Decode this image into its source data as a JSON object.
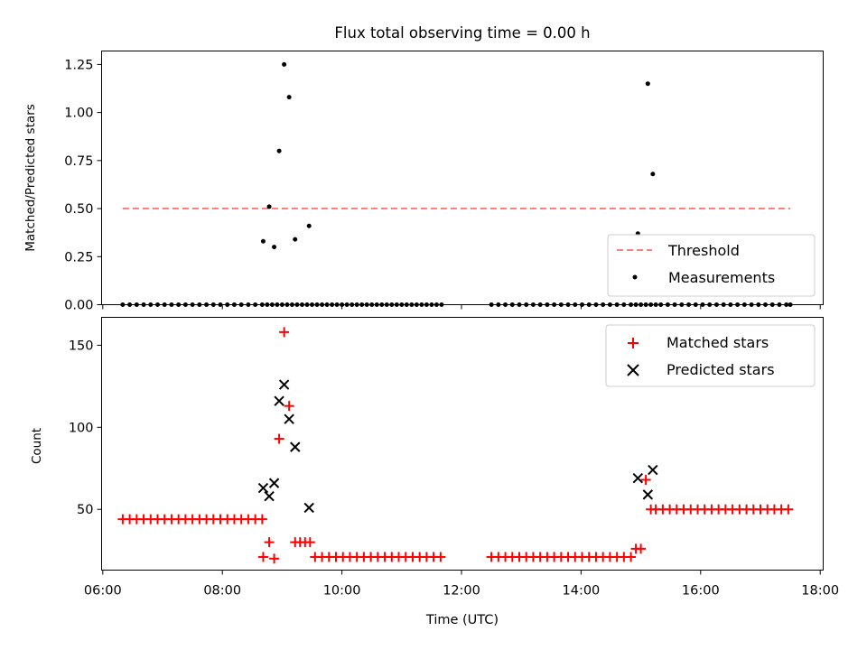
{
  "chart_data": [
    {
      "type": "scatter",
      "title": "Flux total observing time = 0.00 h",
      "xlabel": "",
      "ylabel": "Matched/Predicted stars",
      "xlim": [
        "06:00",
        "18:00"
      ],
      "ylim": [
        0.0,
        1.32
      ],
      "yticks": [
        "0.00",
        "0.25",
        "0.50",
        "0.75",
        "1.00",
        "1.25"
      ],
      "yticks_values": [
        0.0,
        0.25,
        0.5,
        0.75,
        1.0,
        1.25
      ],
      "legend_position": "lower-right",
      "colors": {
        "threshold": "#ff7f7f",
        "measurements": "#000000"
      },
      "series": [
        {
          "name": "Threshold",
          "style": "dashed-line",
          "x": [
            "06:20",
            "17:30"
          ],
          "y": [
            0.5,
            0.5
          ]
        },
        {
          "name": "Measurements",
          "style": "dot",
          "x": [
            "06:20",
            "06:27",
            "06:34",
            "06:41",
            "06:48",
            "06:55",
            "07:02",
            "07:09",
            "07:16",
            "07:23",
            "07:30",
            "07:37",
            "07:44",
            "07:51",
            "07:58",
            "08:05",
            "08:12",
            "08:19",
            "08:26",
            "08:33",
            "08:40",
            "08:45",
            "08:50",
            "08:55",
            "09:00",
            "09:05",
            "09:10",
            "09:15",
            "09:20",
            "09:25",
            "09:30",
            "09:35",
            "09:40",
            "09:45",
            "09:50",
            "09:55",
            "10:00",
            "10:05",
            "10:10",
            "10:15",
            "10:20",
            "10:25",
            "10:30",
            "10:35",
            "10:40",
            "10:45",
            "10:50",
            "10:55",
            "11:00",
            "11:05",
            "11:10",
            "11:15",
            "11:20",
            "11:25",
            "11:30",
            "11:35",
            "11:40",
            "12:30",
            "12:37",
            "12:44",
            "12:51",
            "12:58",
            "13:05",
            "13:12",
            "13:19",
            "13:26",
            "13:33",
            "13:40",
            "13:47",
            "13:54",
            "14:01",
            "14:08",
            "14:15",
            "14:22",
            "14:29",
            "14:36",
            "14:43",
            "14:50",
            "14:55",
            "15:00",
            "15:05",
            "15:10",
            "15:15",
            "15:20",
            "15:27",
            "15:34",
            "15:41",
            "15:48",
            "15:55",
            "16:02",
            "16:09",
            "16:16",
            "16:23",
            "16:30",
            "16:37",
            "16:44",
            "16:51",
            "16:58",
            "17:05",
            "17:12",
            "17:19",
            "17:26",
            "17:30",
            "08:41",
            "08:47",
            "08:52",
            "08:57",
            "09:02",
            "09:07",
            "09:13",
            "09:27",
            "14:57",
            "15:07",
            "15:12"
          ],
          "y": [
            0,
            0,
            0,
            0,
            0,
            0,
            0,
            0,
            0,
            0,
            0,
            0,
            0,
            0,
            0,
            0,
            0,
            0,
            0,
            0,
            0,
            0,
            0,
            0,
            0,
            0,
            0,
            0,
            0,
            0,
            0,
            0,
            0,
            0,
            0,
            0,
            0,
            0,
            0,
            0,
            0,
            0,
            0,
            0,
            0,
            0,
            0,
            0,
            0,
            0,
            0,
            0,
            0,
            0,
            0,
            0,
            0,
            0,
            0,
            0,
            0,
            0,
            0,
            0,
            0,
            0,
            0,
            0,
            0,
            0,
            0,
            0,
            0,
            0,
            0,
            0,
            0,
            0,
            0,
            0,
            0,
            0,
            0,
            0,
            0,
            0,
            0,
            0,
            0,
            0,
            0,
            0,
            0,
            0,
            0,
            0,
            0,
            0,
            0,
            0,
            0,
            0,
            0,
            0.33,
            0.51,
            0.3,
            0.8,
            1.25,
            1.08,
            0.34,
            0.41,
            0.37,
            1.15,
            0.68
          ]
        }
      ]
    },
    {
      "type": "scatter",
      "title": "",
      "xlabel": "Time (UTC)",
      "ylabel": "Count",
      "xlim": [
        "06:00",
        "18:00"
      ],
      "xticks": [
        "06:00",
        "08:00",
        "10:00",
        "12:00",
        "14:00",
        "16:00",
        "18:00"
      ],
      "ylim": [
        13,
        167
      ],
      "yticks": [
        "50",
        "100",
        "150"
      ],
      "yticks_values": [
        50,
        100,
        150
      ],
      "legend_position": "upper-right",
      "colors": {
        "matched": "#ff0000",
        "predicted": "#000000"
      },
      "series": [
        {
          "name": "Matched stars",
          "marker": "+",
          "x": [
            "06:20",
            "06:27",
            "06:34",
            "06:41",
            "06:48",
            "06:55",
            "07:02",
            "07:09",
            "07:16",
            "07:23",
            "07:30",
            "07:37",
            "07:44",
            "07:51",
            "07:58",
            "08:05",
            "08:12",
            "08:19",
            "08:26",
            "08:33",
            "08:40",
            "08:41",
            "08:47",
            "08:52",
            "08:57",
            "09:02",
            "09:07",
            "09:13",
            "09:18",
            "09:23",
            "09:28",
            "09:33",
            "09:40",
            "09:47",
            "09:54",
            "10:01",
            "10:08",
            "10:15",
            "10:22",
            "10:29",
            "10:36",
            "10:43",
            "10:50",
            "10:57",
            "11:04",
            "11:11",
            "11:18",
            "11:25",
            "11:32",
            "11:39",
            "12:30",
            "12:37",
            "12:44",
            "12:51",
            "12:58",
            "13:05",
            "13:12",
            "13:19",
            "13:26",
            "13:33",
            "13:40",
            "13:47",
            "13:54",
            "14:01",
            "14:08",
            "14:15",
            "14:22",
            "14:29",
            "14:36",
            "14:43",
            "14:50",
            "14:55",
            "15:00",
            "15:05",
            "15:10",
            "15:15",
            "15:22",
            "15:29",
            "15:36",
            "15:43",
            "15:50",
            "15:57",
            "16:04",
            "16:11",
            "16:18",
            "16:25",
            "16:32",
            "16:39",
            "16:46",
            "16:53",
            "17:00",
            "17:07",
            "17:14",
            "17:21",
            "17:28"
          ],
          "y": [
            44,
            44,
            44,
            44,
            44,
            44,
            44,
            44,
            44,
            44,
            44,
            44,
            44,
            44,
            44,
            44,
            44,
            44,
            44,
            44,
            44,
            21,
            30,
            20,
            93,
            158,
            113,
            30,
            30,
            30,
            30,
            21,
            21,
            21,
            21,
            21,
            21,
            21,
            21,
            21,
            21,
            21,
            21,
            21,
            21,
            21,
            21,
            21,
            21,
            21,
            21,
            21,
            21,
            21,
            21,
            21,
            21,
            21,
            21,
            21,
            21,
            21,
            21,
            21,
            21,
            21,
            21,
            21,
            21,
            21,
            21,
            26,
            26,
            68,
            50,
            50,
            50,
            50,
            50,
            50,
            50,
            50,
            50,
            50,
            50,
            50,
            50,
            50,
            50,
            50,
            50,
            50,
            50,
            50,
            50
          ]
        },
        {
          "name": "Predicted stars",
          "marker": "x",
          "x": [
            "08:41",
            "08:47",
            "08:52",
            "08:57",
            "09:02",
            "09:07",
            "09:13",
            "09:27",
            "14:57",
            "15:07",
            "15:12"
          ],
          "y": [
            63,
            58,
            66,
            116,
            126,
            105,
            88,
            51,
            69,
            59,
            74
          ]
        }
      ]
    }
  ]
}
